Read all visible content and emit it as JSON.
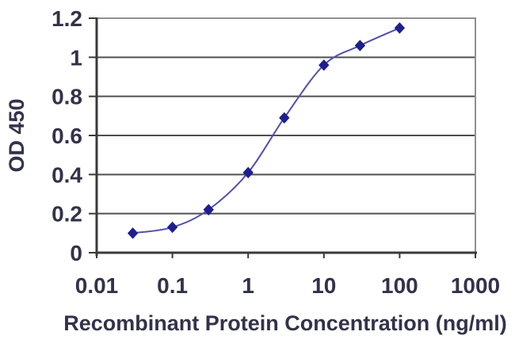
{
  "chart_data": {
    "type": "line",
    "xlabel": "Recombinant Protein Concentration (ng/ml)",
    "ylabel": "OD 450",
    "x_scale": "log",
    "xlim": [
      0.01,
      1000
    ],
    "ylim": [
      0,
      1.2
    ],
    "x_tick_values": [
      0.01,
      0.1,
      1,
      10,
      100,
      1000
    ],
    "x_tick_labels": [
      "0.01",
      "0.1",
      "1",
      "10",
      "100",
      "1000"
    ],
    "y_tick_values": [
      0,
      0.2,
      0.4,
      0.6,
      0.8,
      1,
      1.2
    ],
    "y_tick_labels": [
      "0",
      "0.2",
      "0.4",
      "0.6",
      "0.8",
      "1",
      "1.2"
    ],
    "grid": "horizontal",
    "legend": "none",
    "series": [
      {
        "name": "OD 450",
        "marker": "diamond",
        "line_style": "smooth",
        "x": [
          0.03,
          0.1,
          0.3,
          1,
          3,
          10,
          30,
          100
        ],
        "y": [
          0.1,
          0.13,
          0.22,
          0.41,
          0.69,
          0.96,
          1.06,
          1.15
        ]
      }
    ],
    "colors": {
      "line": "#5050aa",
      "marker": "#1e1e8f",
      "gridline": "#4f4f4f",
      "axis": "#3a3a3a",
      "plot_border": "#909090",
      "label_text": "#32324a",
      "background": "#ffffff"
    }
  }
}
